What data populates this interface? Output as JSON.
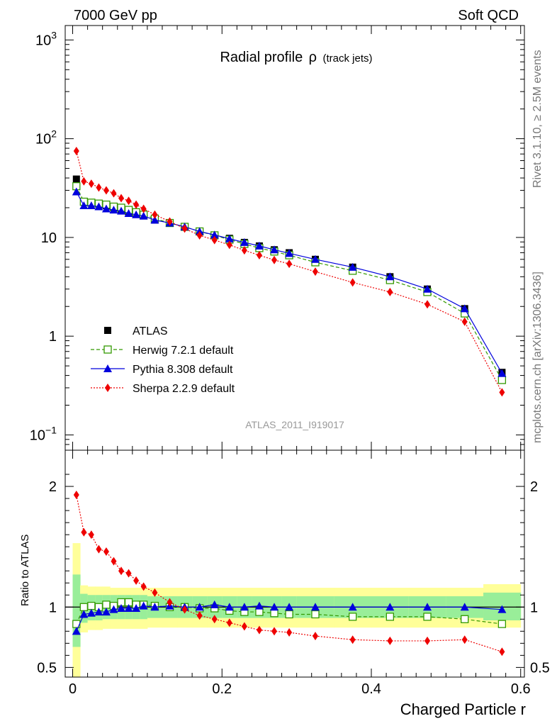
{
  "header": {
    "left": "7000 GeV pp",
    "right": "Soft QCD"
  },
  "side": {
    "rivet": "Rivet 3.1.10, ≥ 2.5M events",
    "mcplots": "mcplots.cern.ch [arXiv:1306.3436]"
  },
  "chart_data": [
    {
      "type": "scatter",
      "title_main": "Radial profile",
      "title_symbol": "ρ",
      "title_sub": "(track jets)",
      "analysis_label": "ATLAS_2011_I919017",
      "yscale": "log",
      "ylim": [
        0.07,
        1400
      ],
      "xlim": [
        -0.01,
        0.605
      ],
      "legend_position": "lower-left",
      "y_ticks": [
        {
          "v": 1000,
          "base": "10",
          "exp": "3"
        },
        {
          "v": 100,
          "base": "10",
          "exp": "2"
        },
        {
          "v": 10,
          "label": "10"
        },
        {
          "v": 1,
          "label": "1"
        },
        {
          "v": 0.1,
          "base": "10",
          "exp": "−1"
        }
      ],
      "x": [
        0.005,
        0.015,
        0.025,
        0.035,
        0.045,
        0.055,
        0.065,
        0.075,
        0.085,
        0.095,
        0.11,
        0.13,
        0.15,
        0.17,
        0.19,
        0.21,
        0.23,
        0.25,
        0.27,
        0.29,
        0.325,
        0.375,
        0.425,
        0.475,
        0.525,
        0.575
      ],
      "series": [
        {
          "name": "ATLAS",
          "color": "#000000",
          "marker": "square",
          "line": "none",
          "values": [
            39,
            23,
            22.5,
            22,
            21,
            20,
            19,
            18,
            17.5,
            16.5,
            15,
            14,
            12.8,
            11.5,
            10.5,
            9.8,
            8.9,
            8.2,
            7.5,
            7,
            6,
            5,
            4,
            3,
            1.9,
            0.43
          ]
        },
        {
          "name": "Herwig 7.2.1 default",
          "color": "#339900",
          "marker": "open-square",
          "line": "dashed",
          "values": [
            33,
            23,
            22.5,
            22,
            21.5,
            20.5,
            20,
            19,
            18,
            17,
            15.5,
            14,
            12.8,
            11.5,
            10.5,
            9.5,
            8.6,
            7.8,
            7.2,
            6.6,
            5.6,
            4.6,
            3.7,
            2.8,
            1.7,
            0.36
          ]
        },
        {
          "name": "Pythia 8.308 default",
          "color": "#0000dd",
          "marker": "triangle",
          "line": "solid",
          "values": [
            29,
            21,
            21,
            20.5,
            19.5,
            19,
            18.5,
            17.5,
            17,
            16.5,
            15,
            14,
            12.8,
            11.5,
            10.6,
            9.7,
            8.9,
            8.2,
            7.5,
            6.9,
            6,
            5,
            4,
            3,
            1.9,
            0.42
          ]
        },
        {
          "name": "Sherpa 2.2.9 default",
          "color": "#ee0000",
          "marker": "diamond",
          "line": "dotted",
          "values": [
            75,
            37,
            35,
            32,
            30,
            28,
            25,
            23.5,
            21.5,
            19.5,
            17,
            14.5,
            12.3,
            10.5,
            9.4,
            8.4,
            7.4,
            6.6,
            5.9,
            5.4,
            4.5,
            3.5,
            2.8,
            2.1,
            1.4,
            0.27
          ]
        }
      ]
    },
    {
      "type": "scatter",
      "ylabel": "Ratio to ATLAS",
      "xlabel": "Charged Particle r",
      "ylim": [
        0.42,
        2.3
      ],
      "xlim": [
        -0.01,
        0.605
      ],
      "y_ticks": [
        {
          "v": 2,
          "label": "2"
        },
        {
          "v": 1,
          "label": "1"
        },
        {
          "v": 0.5,
          "label": "0.5"
        }
      ],
      "x_ticks": [
        {
          "v": 0,
          "label": "0"
        },
        {
          "v": 0.2,
          "label": "0.2"
        },
        {
          "v": 0.4,
          "label": "0.4"
        },
        {
          "v": 0.6,
          "label": "0.6"
        }
      ],
      "bins": [
        [
          0,
          0.01
        ],
        [
          0.01,
          0.02
        ],
        [
          0.02,
          0.03
        ],
        [
          0.03,
          0.04
        ],
        [
          0.04,
          0.05
        ],
        [
          0.05,
          0.06
        ],
        [
          0.06,
          0.07
        ],
        [
          0.07,
          0.08
        ],
        [
          0.08,
          0.09
        ],
        [
          0.09,
          0.1
        ],
        [
          0.1,
          0.12
        ],
        [
          0.12,
          0.14
        ],
        [
          0.14,
          0.16
        ],
        [
          0.16,
          0.18
        ],
        [
          0.18,
          0.2
        ],
        [
          0.2,
          0.22
        ],
        [
          0.22,
          0.24
        ],
        [
          0.24,
          0.26
        ],
        [
          0.26,
          0.28
        ],
        [
          0.28,
          0.3
        ],
        [
          0.3,
          0.35
        ],
        [
          0.35,
          0.4
        ],
        [
          0.4,
          0.45
        ],
        [
          0.45,
          0.5
        ],
        [
          0.5,
          0.55
        ],
        [
          0.55,
          0.6
        ]
      ],
      "band_stat": [
        [
          0.67,
          1.27
        ],
        [
          0.87,
          1.11
        ],
        [
          0.89,
          1.1
        ],
        [
          0.89,
          1.1
        ],
        [
          0.9,
          1.1
        ],
        [
          0.9,
          1.1
        ],
        [
          0.9,
          1.1
        ],
        [
          0.9,
          1.1
        ],
        [
          0.9,
          1.1
        ],
        [
          0.9,
          1.1
        ],
        [
          0.91,
          1.09
        ],
        [
          0.91,
          1.09
        ],
        [
          0.91,
          1.09
        ],
        [
          0.91,
          1.09
        ],
        [
          0.91,
          1.09
        ],
        [
          0.91,
          1.09
        ],
        [
          0.91,
          1.09
        ],
        [
          0.91,
          1.09
        ],
        [
          0.91,
          1.09
        ],
        [
          0.91,
          1.09
        ],
        [
          0.91,
          1.09
        ],
        [
          0.91,
          1.09
        ],
        [
          0.91,
          1.09
        ],
        [
          0.91,
          1.09
        ],
        [
          0.91,
          1.09
        ],
        [
          0.89,
          1.12
        ]
      ],
      "band_total": [
        [
          0.42,
          1.53
        ],
        [
          0.79,
          1.18
        ],
        [
          0.81,
          1.17
        ],
        [
          0.81,
          1.17
        ],
        [
          0.82,
          1.17
        ],
        [
          0.82,
          1.16
        ],
        [
          0.82,
          1.16
        ],
        [
          0.82,
          1.16
        ],
        [
          0.82,
          1.16
        ],
        [
          0.82,
          1.16
        ],
        [
          0.83,
          1.16
        ],
        [
          0.83,
          1.16
        ],
        [
          0.83,
          1.16
        ],
        [
          0.83,
          1.16
        ],
        [
          0.83,
          1.16
        ],
        [
          0.83,
          1.16
        ],
        [
          0.83,
          1.16
        ],
        [
          0.83,
          1.16
        ],
        [
          0.83,
          1.16
        ],
        [
          0.83,
          1.16
        ],
        [
          0.83,
          1.16
        ],
        [
          0.83,
          1.16
        ],
        [
          0.83,
          1.16
        ],
        [
          0.83,
          1.16
        ],
        [
          0.83,
          1.16
        ],
        [
          0.83,
          1.19
        ]
      ],
      "series": [
        {
          "name": "Herwig 7.2.1 default",
          "color": "#339900",
          "marker": "open-square",
          "line": "dashed",
          "values": [
            0.86,
            1.0,
            1.01,
            1.0,
            1.02,
            1.01,
            1.04,
            1.04,
            1.02,
            1.02,
            1.01,
            1.0,
            1.0,
            0.99,
            0.99,
            0.97,
            0.96,
            0.96,
            0.95,
            0.94,
            0.94,
            0.92,
            0.92,
            0.92,
            0.9,
            0.86
          ]
        },
        {
          "name": "Pythia 8.308 default",
          "color": "#0000dd",
          "marker": "triangle",
          "line": "solid",
          "values": [
            0.8,
            0.94,
            0.95,
            0.96,
            0.96,
            0.98,
            0.99,
            0.99,
            0.99,
            1.01,
            1.0,
            1.01,
            1.0,
            1.0,
            1.02,
            1.0,
            1.0,
            1.01,
            1.0,
            1.0,
            1.0,
            1.0,
            1.0,
            1.0,
            1.0,
            0.98
          ]
        },
        {
          "name": "Sherpa 2.2.9 default",
          "color": "#ee0000",
          "marker": "diamond",
          "line": "dotted",
          "values": [
            1.93,
            1.62,
            1.6,
            1.48,
            1.46,
            1.38,
            1.3,
            1.28,
            1.22,
            1.17,
            1.12,
            1.04,
            0.98,
            0.93,
            0.9,
            0.87,
            0.84,
            0.81,
            0.8,
            0.79,
            0.76,
            0.73,
            0.72,
            0.72,
            0.73,
            0.63
          ]
        }
      ]
    }
  ]
}
